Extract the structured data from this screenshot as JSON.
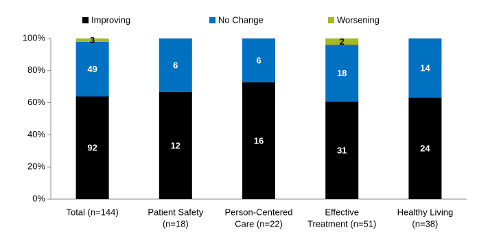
{
  "chart_data": {
    "type": "bar",
    "stack": "percent",
    "categories": [
      [
        "Total (n=144)"
      ],
      [
        "Patient Safety",
        "(n=18)"
      ],
      [
        "Person-Centered",
        "Care (n=22)"
      ],
      [
        "Effective",
        "Treatment (n=51)"
      ],
      [
        "Healthy Living",
        "(n=38)"
      ]
    ],
    "series": [
      {
        "name": "Improving",
        "color": "#000000",
        "label_color": "#ffffff",
        "values": [
          92,
          12,
          16,
          31,
          24
        ]
      },
      {
        "name": "No Change",
        "color": "#0070c0",
        "label_color": "#ffffff",
        "values": [
          49,
          6,
          6,
          18,
          14
        ]
      },
      {
        "name": "Worsening",
        "color": "#a5b921",
        "label_color": "#000000",
        "values": [
          3,
          null,
          null,
          2,
          null
        ]
      }
    ],
    "ylim": [
      0,
      100
    ],
    "yticks": [
      {
        "value": 0,
        "label": "0%"
      },
      {
        "value": 20,
        "label": "20%"
      },
      {
        "value": 40,
        "label": "40%"
      },
      {
        "value": 60,
        "label": "60%"
      },
      {
        "value": 80,
        "label": "80%"
      },
      {
        "value": 100,
        "label": "100%"
      }
    ],
    "legend": "top",
    "grid": false
  }
}
